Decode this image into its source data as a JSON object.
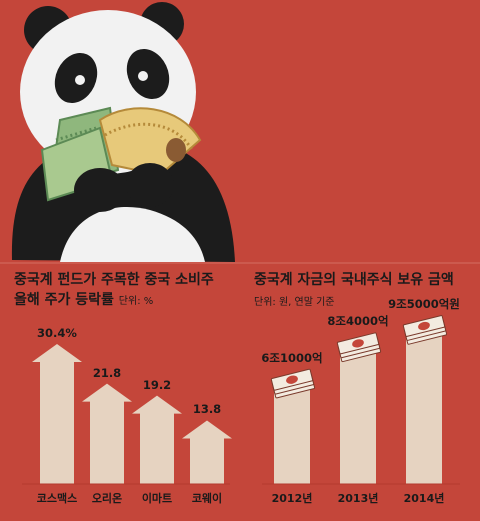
{
  "colors": {
    "background": "#c4463a",
    "bar": "#e6d3c1",
    "text": "#1a1a1a"
  },
  "left_chart": {
    "title_line1": "중국계 펀드가 주목한 중국 소비주",
    "title_line2": "올해 주가 등락률",
    "unit": "단위: %"
  },
  "right_chart": {
    "title": "중국계 자금의 국내주식 보유 금액",
    "unit": "단위: 원, 연말 기준"
  },
  "chart_data": [
    {
      "type": "bar",
      "title": "중국계 펀드가 주목한 중국 소비주 올해 주가 등락률",
      "unit": "단위: %",
      "categories": [
        "코스맥스",
        "오리온",
        "이마트",
        "코웨이"
      ],
      "values": [
        30.4,
        21.8,
        19.2,
        13.8
      ],
      "value_labels": [
        "30.4%",
        "21.8",
        "19.2",
        "13.8"
      ]
    },
    {
      "type": "bar",
      "title": "중국계 자금의 국내주식 보유 금액",
      "unit": "단위: 원, 연말 기준",
      "categories": [
        "2012년",
        "2013년",
        "2014년"
      ],
      "values": [
        6.1,
        8.4,
        9.5
      ],
      "value_labels": [
        "6조1000억",
        "8조4000억",
        "9조5000억원"
      ]
    }
  ]
}
